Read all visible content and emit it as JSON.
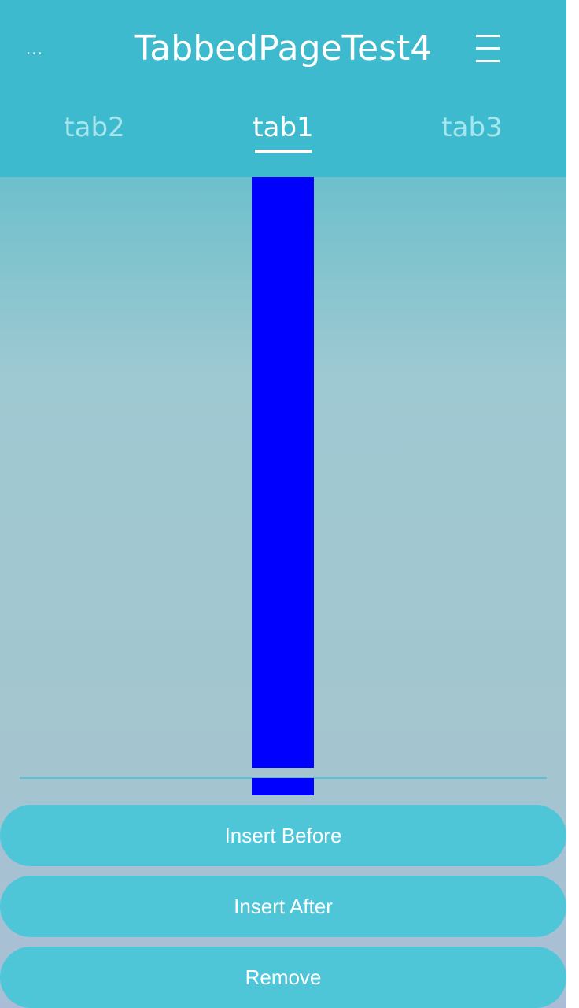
{
  "header": {
    "more_icon_text": "...",
    "title": "TabbedPageTest4",
    "menu_icon": "hamburger-menu-icon"
  },
  "tabs": [
    {
      "label": "tab2",
      "active": false
    },
    {
      "label": "tab1",
      "active": true
    },
    {
      "label": "tab3",
      "active": false
    }
  ],
  "buttons": {
    "insert_before": "Insert Before",
    "insert_after": "Insert After",
    "remove": "Remove"
  },
  "colors": {
    "header_bg": "#3dbacd",
    "button_bg": "#4fc6d8",
    "bar": "#0000ff",
    "tab_active": "#ffffff",
    "tab_inactive": "#a6e6ee"
  }
}
